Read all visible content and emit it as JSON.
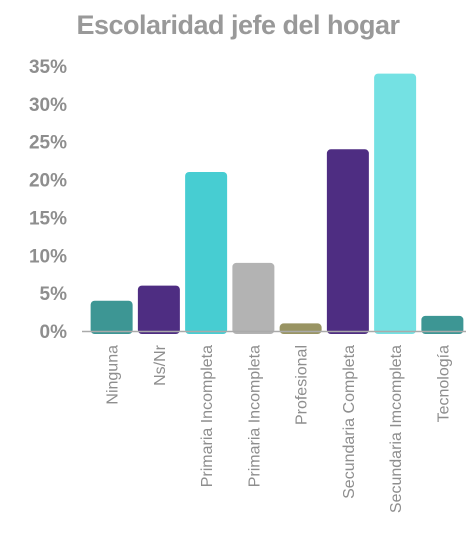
{
  "chart_data": {
    "type": "bar",
    "title": "Escolaridad jefe del hogar",
    "xlabel": "",
    "ylabel": "",
    "ylim": [
      0,
      35
    ],
    "yticks": [
      "0%",
      "5%",
      "10%",
      "15%",
      "20%",
      "25%",
      "30%",
      "35%"
    ],
    "grid": false,
    "legend": "none",
    "categories": [
      "Ninguna",
      "Ns/Nr",
      "Primaria Incompleta",
      "Primaria Incompleta",
      "Profesional",
      "Secundaria Completa",
      "Secundaria Imcompleta",
      "Tecnología"
    ],
    "values": [
      4,
      6,
      21,
      9,
      1,
      24,
      34,
      2
    ],
    "colors": [
      "#3d9694",
      "#4e2d82",
      "#47cdd2",
      "#b3b3b3",
      "#999463",
      "#4e2d82",
      "#74e1e3",
      "#3d9694"
    ],
    "axis_color": "#aaaaaa",
    "text_color": "#8e8e8e"
  }
}
